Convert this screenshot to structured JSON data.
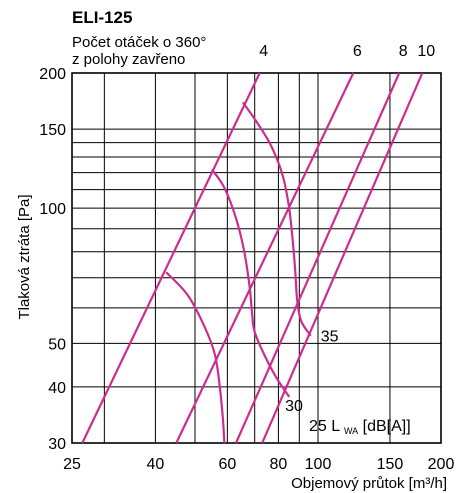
{
  "chart_data": {
    "type": "line",
    "title": "ELI-125",
    "subtitle_lines": [
      "Počet otáček o 360°",
      "z polohy zavřeno"
    ],
    "xlabel": "Objemový průtok [m³/h]",
    "ylabel": "Tlaková ztráta [Pa]",
    "x_scale": "log",
    "y_scale": "log",
    "xlim": [
      25,
      200
    ],
    "ylim": [
      30,
      200
    ],
    "x_ticks": [
      25,
      40,
      60,
      80,
      100,
      150,
      200
    ],
    "y_ticks": [
      30,
      40,
      50,
      100,
      150,
      200
    ],
    "grid": true,
    "valve_lines": [
      {
        "label": "4",
        "points": [
          [
            26.5,
            30
          ],
          [
            72,
            200
          ]
        ]
      },
      {
        "label": "6",
        "points": [
          [
            45,
            30
          ],
          [
            122,
            200
          ]
        ]
      },
      {
        "label": "8",
        "points": [
          [
            63,
            30
          ],
          [
            158,
            200
          ]
        ]
      },
      {
        "label": "10",
        "points": [
          [
            73,
            30
          ],
          [
            180,
            200
          ]
        ]
      }
    ],
    "noise_curves": [
      {
        "label": "35",
        "points": [
          [
            42.5,
            72
          ],
          [
            48,
            64
          ],
          [
            53,
            54
          ],
          [
            56,
            47
          ],
          [
            57.5,
            40
          ],
          [
            58.5,
            34
          ],
          [
            59,
            30
          ]
        ]
      },
      {
        "label": "30",
        "points": [
          [
            55,
            122
          ],
          [
            59,
            111
          ],
          [
            63,
            95
          ],
          [
            66,
            80
          ],
          [
            68,
            67
          ],
          [
            69,
            58
          ],
          [
            70,
            53
          ],
          [
            74,
            47
          ],
          [
            79,
            42
          ],
          [
            85,
            38
          ]
        ]
      },
      {
        "label": "25",
        "points": [
          [
            65.5,
            172
          ],
          [
            71,
            155
          ],
          [
            77,
            137
          ],
          [
            82,
            118
          ],
          [
            85,
            100
          ],
          [
            87,
            82
          ],
          [
            88,
            72
          ],
          [
            89,
            62
          ],
          [
            91,
            56
          ],
          [
            96,
            52
          ]
        ]
      }
    ],
    "noise_unit": "L",
    "noise_unit_sub": "WA",
    "noise_unit_tail": " [dB[A]]"
  },
  "colors": {
    "curve": "#cc2d8f",
    "grid": "#000000"
  }
}
